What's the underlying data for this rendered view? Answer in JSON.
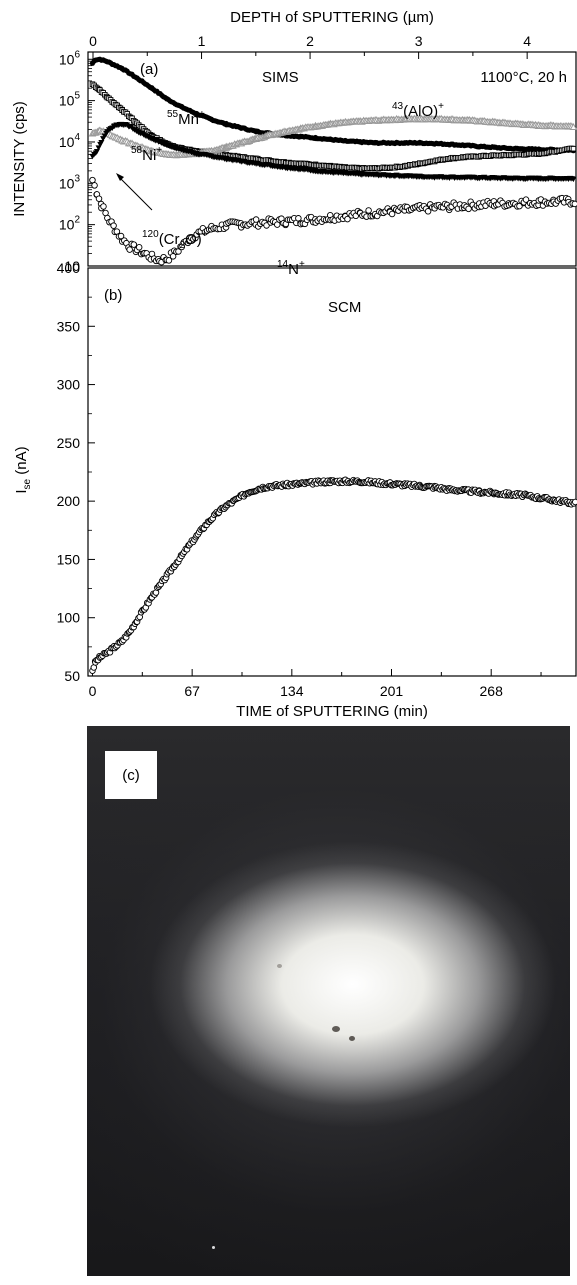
{
  "chart_data": [
    {
      "id": "a",
      "type": "scatter",
      "panel_label": "(a)",
      "title": "SIMS",
      "condition": "1100°C, 20 h",
      "top_axis": {
        "label": "DEPTH of SPUTTERING (µm)",
        "ticks": [
          0,
          1,
          2,
          3,
          4
        ],
        "range": [
          0,
          4.45
        ]
      },
      "y_axis": {
        "label": "INTENSITY (cps)",
        "scale": "log",
        "range": [
          10,
          1500000
        ],
        "ticks": [
          10,
          100,
          1000,
          10000,
          100000,
          1000000
        ],
        "tick_labels": [
          {
            "base": "10",
            "exp": ""
          },
          {
            "base": "10",
            "exp": "2"
          },
          {
            "base": "10",
            "exp": "3"
          },
          {
            "base": "10",
            "exp": "4"
          },
          {
            "base": "10",
            "exp": "5"
          },
          {
            "base": "10",
            "exp": "6"
          }
        ]
      },
      "x_range_min": [
        0,
        325
      ],
      "series": [
        {
          "name": "55Mn+",
          "label": {
            "iso": "55",
            "text": "Mn",
            "charge": "+"
          },
          "marker": "filled-circle",
          "color": "#000000",
          "points": [
            [
              0,
              800000
            ],
            [
              2,
              980000
            ],
            [
              5,
              1000000
            ],
            [
              10,
              880000
            ],
            [
              20,
              600000
            ],
            [
              30,
              350000
            ],
            [
              40,
              200000
            ],
            [
              50,
              110000
            ],
            [
              60,
              70000
            ],
            [
              70,
              48000
            ],
            [
              80,
              35000
            ],
            [
              90,
              27000
            ],
            [
              100,
              22000
            ],
            [
              110,
              18000
            ],
            [
              120,
              16000
            ],
            [
              130,
              14500
            ],
            [
              140,
              13500
            ],
            [
              150,
              12500
            ],
            [
              160,
              11500
            ],
            [
              170,
              10500
            ],
            [
              180,
              10000
            ],
            [
              190,
              9500
            ],
            [
              200,
              9500
            ],
            [
              210,
              9500
            ],
            [
              220,
              9500
            ],
            [
              230,
              9200
            ],
            [
              240,
              8800
            ],
            [
              250,
              8300
            ],
            [
              260,
              7800
            ],
            [
              270,
              7400
            ],
            [
              280,
              7000
            ],
            [
              290,
              6800
            ],
            [
              300,
              6600
            ],
            [
              310,
              6500
            ],
            [
              320,
              6400
            ],
            [
              325,
              6300
            ]
          ]
        },
        {
          "name": "58Ni+",
          "label": {
            "iso": "58",
            "text": "Ni",
            "charge": "+"
          },
          "marker": "open-square",
          "color": "#000000",
          "points": [
            [
              0,
              250000
            ],
            [
              5,
              180000
            ],
            [
              10,
              120000
            ],
            [
              20,
              60000
            ],
            [
              30,
              28000
            ],
            [
              40,
              14000
            ],
            [
              50,
              9000
            ],
            [
              60,
              7000
            ],
            [
              70,
              6000
            ],
            [
              80,
              5400
            ],
            [
              90,
              4800
            ],
            [
              100,
              4300
            ],
            [
              110,
              3900
            ],
            [
              120,
              3500
            ],
            [
              130,
              3200
            ],
            [
              140,
              3000
            ],
            [
              150,
              2800
            ],
            [
              160,
              2600
            ],
            [
              170,
              2400
            ],
            [
              180,
              2300
            ],
            [
              190,
              2300
            ],
            [
              200,
              2400
            ],
            [
              210,
              2600
            ],
            [
              220,
              3000
            ],
            [
              230,
              3500
            ],
            [
              240,
              4000
            ],
            [
              250,
              4300
            ],
            [
              260,
              4500
            ],
            [
              270,
              4700
            ],
            [
              280,
              4800
            ],
            [
              290,
              5000
            ],
            [
              300,
              5200
            ],
            [
              310,
              5800
            ],
            [
              320,
              6800
            ],
            [
              325,
              7200
            ]
          ]
        },
        {
          "name": "43(AlO)+",
          "label": {
            "iso": "43",
            "text": "(AlO)",
            "charge": "+"
          },
          "marker": "open-triangle",
          "color": "#999999",
          "points": [
            [
              0,
              16000
            ],
            [
              5,
              19000
            ],
            [
              10,
              16000
            ],
            [
              20,
              11000
            ],
            [
              30,
              8000
            ],
            [
              40,
              6000
            ],
            [
              50,
              5000
            ],
            [
              60,
              4900
            ],
            [
              70,
              5200
            ],
            [
              80,
              6000
            ],
            [
              90,
              7500
            ],
            [
              100,
              9500
            ],
            [
              110,
              12000
            ],
            [
              120,
              15000
            ],
            [
              130,
              18000
            ],
            [
              140,
              21000
            ],
            [
              150,
              24000
            ],
            [
              160,
              27000
            ],
            [
              170,
              29500
            ],
            [
              180,
              31500
            ],
            [
              190,
              33000
            ],
            [
              200,
              34500
            ],
            [
              210,
              35500
            ],
            [
              220,
              36000
            ],
            [
              230,
              36000
            ],
            [
              240,
              35000
            ],
            [
              250,
              33500
            ],
            [
              260,
              32000
            ],
            [
              270,
              30000
            ],
            [
              280,
              28000
            ],
            [
              290,
              26500
            ],
            [
              300,
              25000
            ],
            [
              310,
              24500
            ],
            [
              320,
              24000
            ],
            [
              325,
              23500
            ]
          ]
        },
        {
          "name": "120(Cr2O)+",
          "label": {
            "iso": "120",
            "text": "(Cr",
            "sub": "2",
            "tail": "O)",
            "charge": "+"
          },
          "marker": "filled-triangle",
          "color": "#000000",
          "points": [
            [
              0,
              4500
            ],
            [
              3,
              6000
            ],
            [
              6,
              10000
            ],
            [
              10,
              18000
            ],
            [
              15,
              25000
            ],
            [
              20,
              27000
            ],
            [
              25,
              24000
            ],
            [
              30,
              18000
            ],
            [
              40,
              12000
            ],
            [
              50,
              8500
            ],
            [
              60,
              6500
            ],
            [
              70,
              5200
            ],
            [
              80,
              4500
            ],
            [
              90,
              3900
            ],
            [
              100,
              3400
            ],
            [
              110,
              3000
            ],
            [
              120,
              2700
            ],
            [
              130,
              2400
            ],
            [
              140,
              2200
            ],
            [
              150,
              2000
            ],
            [
              160,
              1850
            ],
            [
              170,
              1750
            ],
            [
              180,
              1650
            ],
            [
              190,
              1600
            ],
            [
              200,
              1550
            ],
            [
              210,
              1500
            ],
            [
              220,
              1450
            ],
            [
              230,
              1420
            ],
            [
              240,
              1400
            ],
            [
              250,
              1380
            ],
            [
              260,
              1360
            ],
            [
              270,
              1340
            ],
            [
              280,
              1320
            ],
            [
              290,
              1300
            ],
            [
              300,
              1300
            ],
            [
              310,
              1300
            ],
            [
              320,
              1300
            ],
            [
              325,
              1300
            ]
          ]
        },
        {
          "name": "14N+",
          "label": {
            "iso": "14",
            "text": "N",
            "charge": "+"
          },
          "marker": "open-circle",
          "color": "#000000",
          "points": [
            [
              0,
              1200
            ],
            [
              3,
              600
            ],
            [
              6,
              300
            ],
            [
              10,
              150
            ],
            [
              15,
              80
            ],
            [
              20,
              45
            ],
            [
              25,
              30
            ],
            [
              30,
              25
            ],
            [
              35,
              20
            ],
            [
              40,
              16
            ],
            [
              45,
              14
            ],
            [
              50,
              15
            ],
            [
              55,
              20
            ],
            [
              60,
              30
            ],
            [
              65,
              45
            ],
            [
              70,
              60
            ],
            [
              80,
              80
            ],
            [
              90,
              95
            ],
            [
              100,
              105
            ],
            [
              110,
              110
            ],
            [
              120,
              115
            ],
            [
              130,
              120
            ],
            [
              140,
              125
            ],
            [
              150,
              135
            ],
            [
              160,
              150
            ],
            [
              170,
              165
            ],
            [
              180,
              180
            ],
            [
              190,
              195
            ],
            [
              200,
              210
            ],
            [
              210,
              225
            ],
            [
              220,
              240
            ],
            [
              230,
              260
            ],
            [
              240,
              275
            ],
            [
              250,
              290
            ],
            [
              260,
              305
            ],
            [
              270,
              320
            ],
            [
              280,
              330
            ],
            [
              290,
              340
            ],
            [
              300,
              350
            ],
            [
              310,
              360
            ],
            [
              320,
              365
            ],
            [
              325,
              370
            ]
          ]
        }
      ]
    },
    {
      "id": "b",
      "type": "scatter",
      "panel_label": "(b)",
      "title": "SCM",
      "x_axis": {
        "label": "TIME of SPUTTERING (min)",
        "ticks": [
          0,
          67,
          134,
          201,
          268
        ],
        "range": [
          -3,
          325
        ]
      },
      "y_axis": {
        "label_main": "I",
        "label_sub": "se",
        "label_unit": " (nA)",
        "range": [
          50,
          400
        ],
        "ticks": [
          50,
          100,
          150,
          200,
          250,
          300,
          350,
          400
        ]
      },
      "series": [
        {
          "name": "Ise",
          "marker": "open-circle",
          "color": "#000000",
          "points": [
            [
              0,
              55
            ],
            [
              2,
              62
            ],
            [
              5,
              66
            ],
            [
              10,
              70
            ],
            [
              15,
              75
            ],
            [
              20,
              80
            ],
            [
              25,
              88
            ],
            [
              30,
              98
            ],
            [
              35,
              108
            ],
            [
              40,
              118
            ],
            [
              45,
              127
            ],
            [
              50,
              136
            ],
            [
              55,
              145
            ],
            [
              60,
              153
            ],
            [
              65,
              162
            ],
            [
              70,
              170
            ],
            [
              75,
              178
            ],
            [
              80,
              185
            ],
            [
              85,
              191
            ],
            [
              90,
              196
            ],
            [
              95,
              200
            ],
            [
              100,
              204
            ],
            [
              105,
              208
            ],
            [
              110,
              210
            ],
            [
              115,
              212
            ],
            [
              120,
              213
            ],
            [
              130,
              214
            ],
            [
              140,
              215
            ],
            [
              150,
              216
            ],
            [
              160,
              217
            ],
            [
              170,
              217
            ],
            [
              180,
              217
            ],
            [
              190,
              216
            ],
            [
              200,
              215
            ],
            [
              210,
              214
            ],
            [
              220,
              213
            ],
            [
              230,
              212
            ],
            [
              240,
              210
            ],
            [
              250,
              209
            ],
            [
              260,
              208
            ],
            [
              270,
              207
            ],
            [
              280,
              206
            ],
            [
              290,
              205
            ],
            [
              300,
              203
            ],
            [
              310,
              201
            ],
            [
              320,
              199
            ],
            [
              325,
              198
            ]
          ]
        }
      ]
    }
  ],
  "photo": {
    "label": "(c)"
  }
}
